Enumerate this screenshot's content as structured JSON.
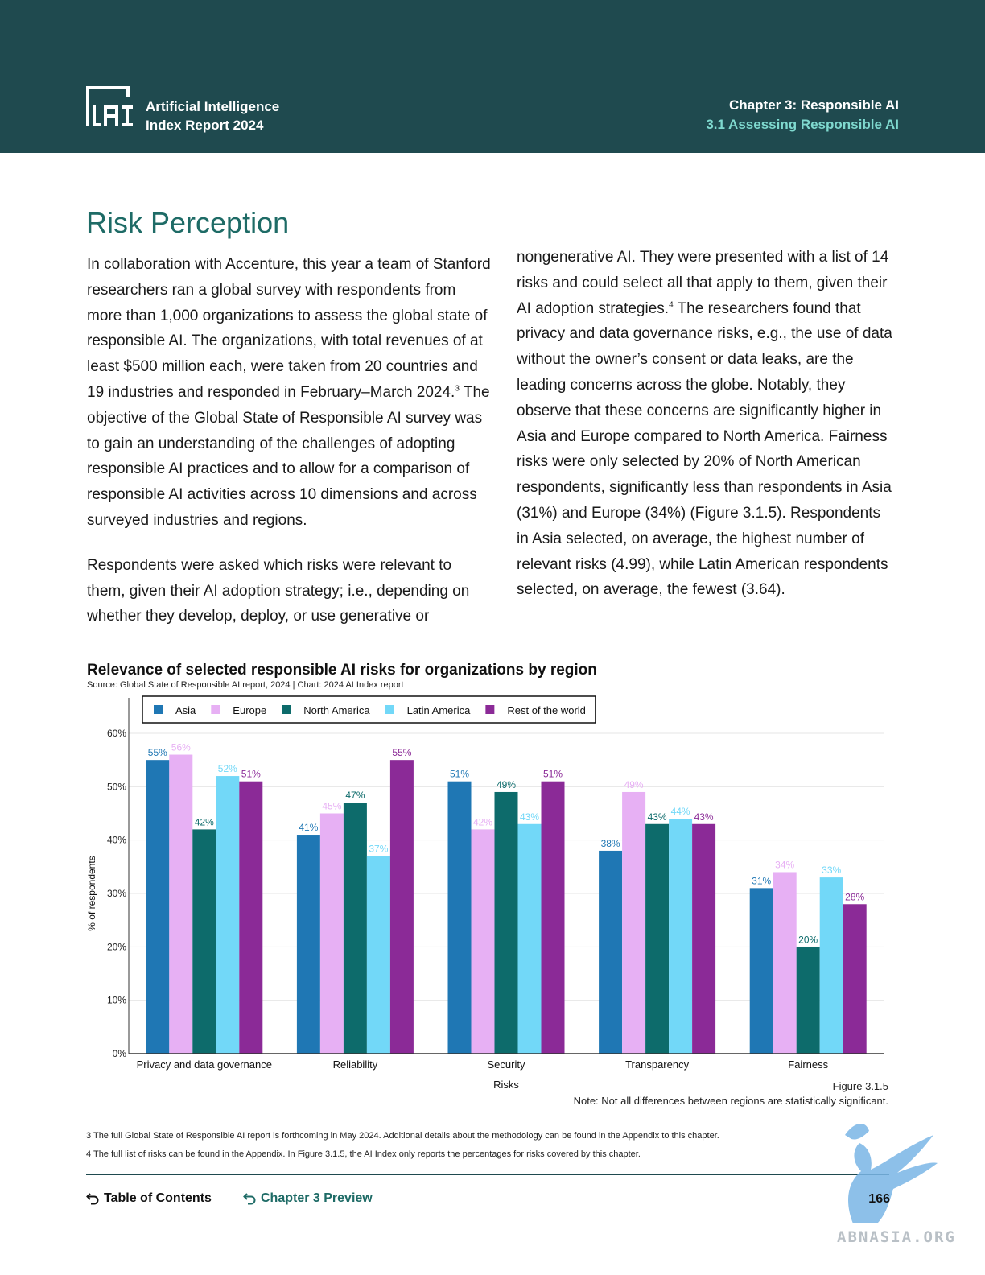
{
  "header": {
    "logo_line1": "Artificial Intelligence",
    "logo_line2": "Index Report 2024",
    "chapter": "Chapter 3: Responsible AI",
    "section": "3.1 Assessing Responsible AI",
    "background_color": "#1f4a4f"
  },
  "section_title": "Risk Perception",
  "paragraphs": {
    "p1_a": "In collaboration with Accenture, this year a team of Stanford researchers ran a global survey with respondents from more than 1,000 organizations to assess the global state of responsible AI. The organizations, with total revenues of at least $500 million each, were taken from 20 countries and 19 industries and responded in February–March 2024.",
    "p1_sup": "3",
    "p1_b": " The objective of the Global State of Responsible AI survey was to gain an understanding of the challenges of adopting responsible AI practices and to allow for a comparison of responsible AI activities across 10 dimensions and across surveyed industries and regions.",
    "p2": "Respondents were asked which risks were relevant to them, given their AI adoption strategy; i.e., depending on whether they develop, deploy, or use generative or",
    "p3_a": "nongenerative AI. They were presented with a list of 14 risks and could select all that apply to them, given their AI adoption strategies.",
    "p3_sup": "4",
    "p3_b": " The researchers found that privacy and data governance risks, e.g., the use of data without the owner’s consent or data leaks, are the leading concerns across the globe. Notably, they observe that these concerns are significantly higher in Asia and Europe compared to North America. Fairness risks were only selected by 20% of North American respondents, significantly less than respondents in Asia (31%) and Europe (34%) (Figure 3.1.5). Respondents in Asia selected, on average, the highest number of relevant risks (4.99), while Latin American respondents selected, on average, the fewest (3.64)."
  },
  "chart_data": {
    "type": "bar",
    "title": "Relevance of selected responsible AI risks for organizations by region",
    "source": "Source: Global State of Responsible AI report, 2024 | Chart: 2024 AI Index report",
    "xlabel": "Risks",
    "ylabel": "% of respondents",
    "ylim": [
      0,
      60
    ],
    "yticks": [
      "0%",
      "10%",
      "20%",
      "30%",
      "40%",
      "50%",
      "60%"
    ],
    "categories": [
      "Privacy and data governance",
      "Reliability",
      "Security",
      "Transparency",
      "Fairness"
    ],
    "series": [
      {
        "name": "Asia",
        "color": "#1f77b4",
        "values": [
          55,
          41,
          51,
          38,
          31
        ]
      },
      {
        "name": "Europe",
        "color": "#e7b0f4",
        "values": [
          56,
          45,
          42,
          49,
          34
        ]
      },
      {
        "name": "North America",
        "color": "#0d6b6b",
        "values": [
          42,
          47,
          49,
          43,
          20
        ]
      },
      {
        "name": "Latin America",
        "color": "#72d8f8",
        "values": [
          52,
          37,
          43,
          44,
          33
        ]
      },
      {
        "name": "Rest of the world",
        "color": "#8b2a97",
        "values": [
          51,
          55,
          51,
          43,
          28
        ]
      }
    ],
    "legend_position": "top",
    "grid": true
  },
  "figure": {
    "id": "Figure 3.1.5",
    "note": "Note: Not all differences between regions are statistically significant."
  },
  "footnotes": [
    "3 The full Global State of Responsible AI report is forthcoming in May 2024. Additional details about the methodology can be found in the Appendix to this chapter.",
    "4 The full list of risks can be found in the Appendix. In Figure 3.1.5, the AI Index only reports the percentages for risks covered by this chapter."
  ],
  "footer": {
    "toc_label": "Table of Contents",
    "chapter_preview_label": "Chapter 3 Preview",
    "page_number": "166"
  },
  "watermark": "ABNASIA.ORG"
}
